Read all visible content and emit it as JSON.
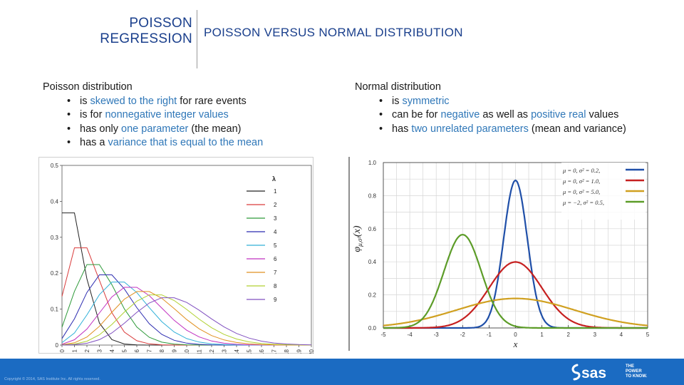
{
  "header": {
    "section_line1": "POISSON",
    "section_line2": "REGRESSION",
    "title": "POISSON VERSUS NORMAL DISTRIBUTION"
  },
  "poisson": {
    "heading": "Poisson distribution",
    "b1_pre": "is ",
    "b1_hl": "skewed to the right",
    "b1_post": " for rare events",
    "b2_pre": "is for ",
    "b2_hl": "nonnegative integer values",
    "b3_pre": "has only ",
    "b3_hl": "one parameter",
    "b3_post": " (the mean)",
    "b4_pre": "has a ",
    "b4_hl": "variance that is equal to the mean"
  },
  "normal": {
    "heading": "Normal distribution",
    "b1_pre": "is ",
    "b1_hl": "symmetric",
    "b2_pre": "can be for ",
    "b2_hl": "negative",
    "b2_mid": " as well as ",
    "b2_hl2": "positive real",
    "b2_post": " values",
    "b3_pre": "has ",
    "b3_hl": "two unrelated parameters",
    "b3_post": " (mean and variance)"
  },
  "footer": {
    "copyright": "Copyright © 2014, SAS Institute Inc. All rights reserved.",
    "logo": "sas",
    "tagline1": "THE",
    "tagline2": "POWER",
    "tagline3": "TO KNOW."
  },
  "chart_data": [
    {
      "type": "line",
      "title": "",
      "xlabel": "",
      "ylabel": "",
      "x": [
        0,
        1,
        2,
        3,
        4,
        5,
        6,
        7,
        8,
        9,
        10,
        11,
        12,
        13,
        14,
        15,
        16,
        17,
        18,
        19,
        20
      ],
      "x_ticks": [
        "0",
        "1",
        "2",
        "3",
        "4",
        "5",
        "6",
        "7",
        "8",
        "9",
        "10",
        "11",
        "12",
        "13",
        "14",
        "15",
        "16",
        "17",
        "18",
        "19",
        "20"
      ],
      "y_ticks": [
        "0",
        "0.1",
        "0.2",
        "0.3",
        "0.4",
        "0.5"
      ],
      "xlim": [
        0,
        20
      ],
      "ylim": [
        0,
        0.5
      ],
      "legend_title": "λ",
      "legend_position": "top-right",
      "series": [
        {
          "name": "1",
          "lambda": 1,
          "color": "#222222"
        },
        {
          "name": "2",
          "lambda": 2,
          "color": "#d93a3a"
        },
        {
          "name": "3",
          "lambda": 3,
          "color": "#2f9a3a"
        },
        {
          "name": "4",
          "lambda": 4,
          "color": "#2b2bb0"
        },
        {
          "name": "5",
          "lambda": 5,
          "color": "#30b0d8"
        },
        {
          "name": "6",
          "lambda": 6,
          "color": "#c030c0"
        },
        {
          "name": "7",
          "lambda": 7,
          "color": "#e09020"
        },
        {
          "name": "8",
          "lambda": 8,
          "color": "#b0d030"
        },
        {
          "name": "9",
          "lambda": 9,
          "color": "#8050c0"
        }
      ]
    },
    {
      "type": "line",
      "title": "",
      "xlabel": "x",
      "ylabel": "φμ,σ²(x)",
      "ylabel_main": "φ",
      "ylabel_sub": "μ,σ²",
      "ylabel_arg": "(x)",
      "x_ticks": [
        "-5",
        "-4",
        "-3",
        "-2",
        "-1",
        "0",
        "1",
        "2",
        "3",
        "4",
        "5"
      ],
      "y_ticks": [
        "0.0",
        "0.2",
        "0.4",
        "0.6",
        "0.8",
        "1.0"
      ],
      "xlim": [
        -5,
        5
      ],
      "ylim": [
        0,
        1.0
      ],
      "grid": true,
      "legend_position": "top-right",
      "series": [
        {
          "name": "μ = 0,   σ² = 0.2,",
          "mu": 0,
          "var": 0.2,
          "color": "#1f4fa8"
        },
        {
          "name": "μ = 0,   σ² = 1.0,",
          "mu": 0,
          "var": 1.0,
          "color": "#c62020"
        },
        {
          "name": "μ = 0,   σ² = 5.0,",
          "mu": 0,
          "var": 5.0,
          "color": "#d0a020"
        },
        {
          "name": "μ = −2, σ² = 0.5,",
          "mu": -2,
          "var": 0.5,
          "color": "#5c9c28"
        }
      ]
    }
  ]
}
